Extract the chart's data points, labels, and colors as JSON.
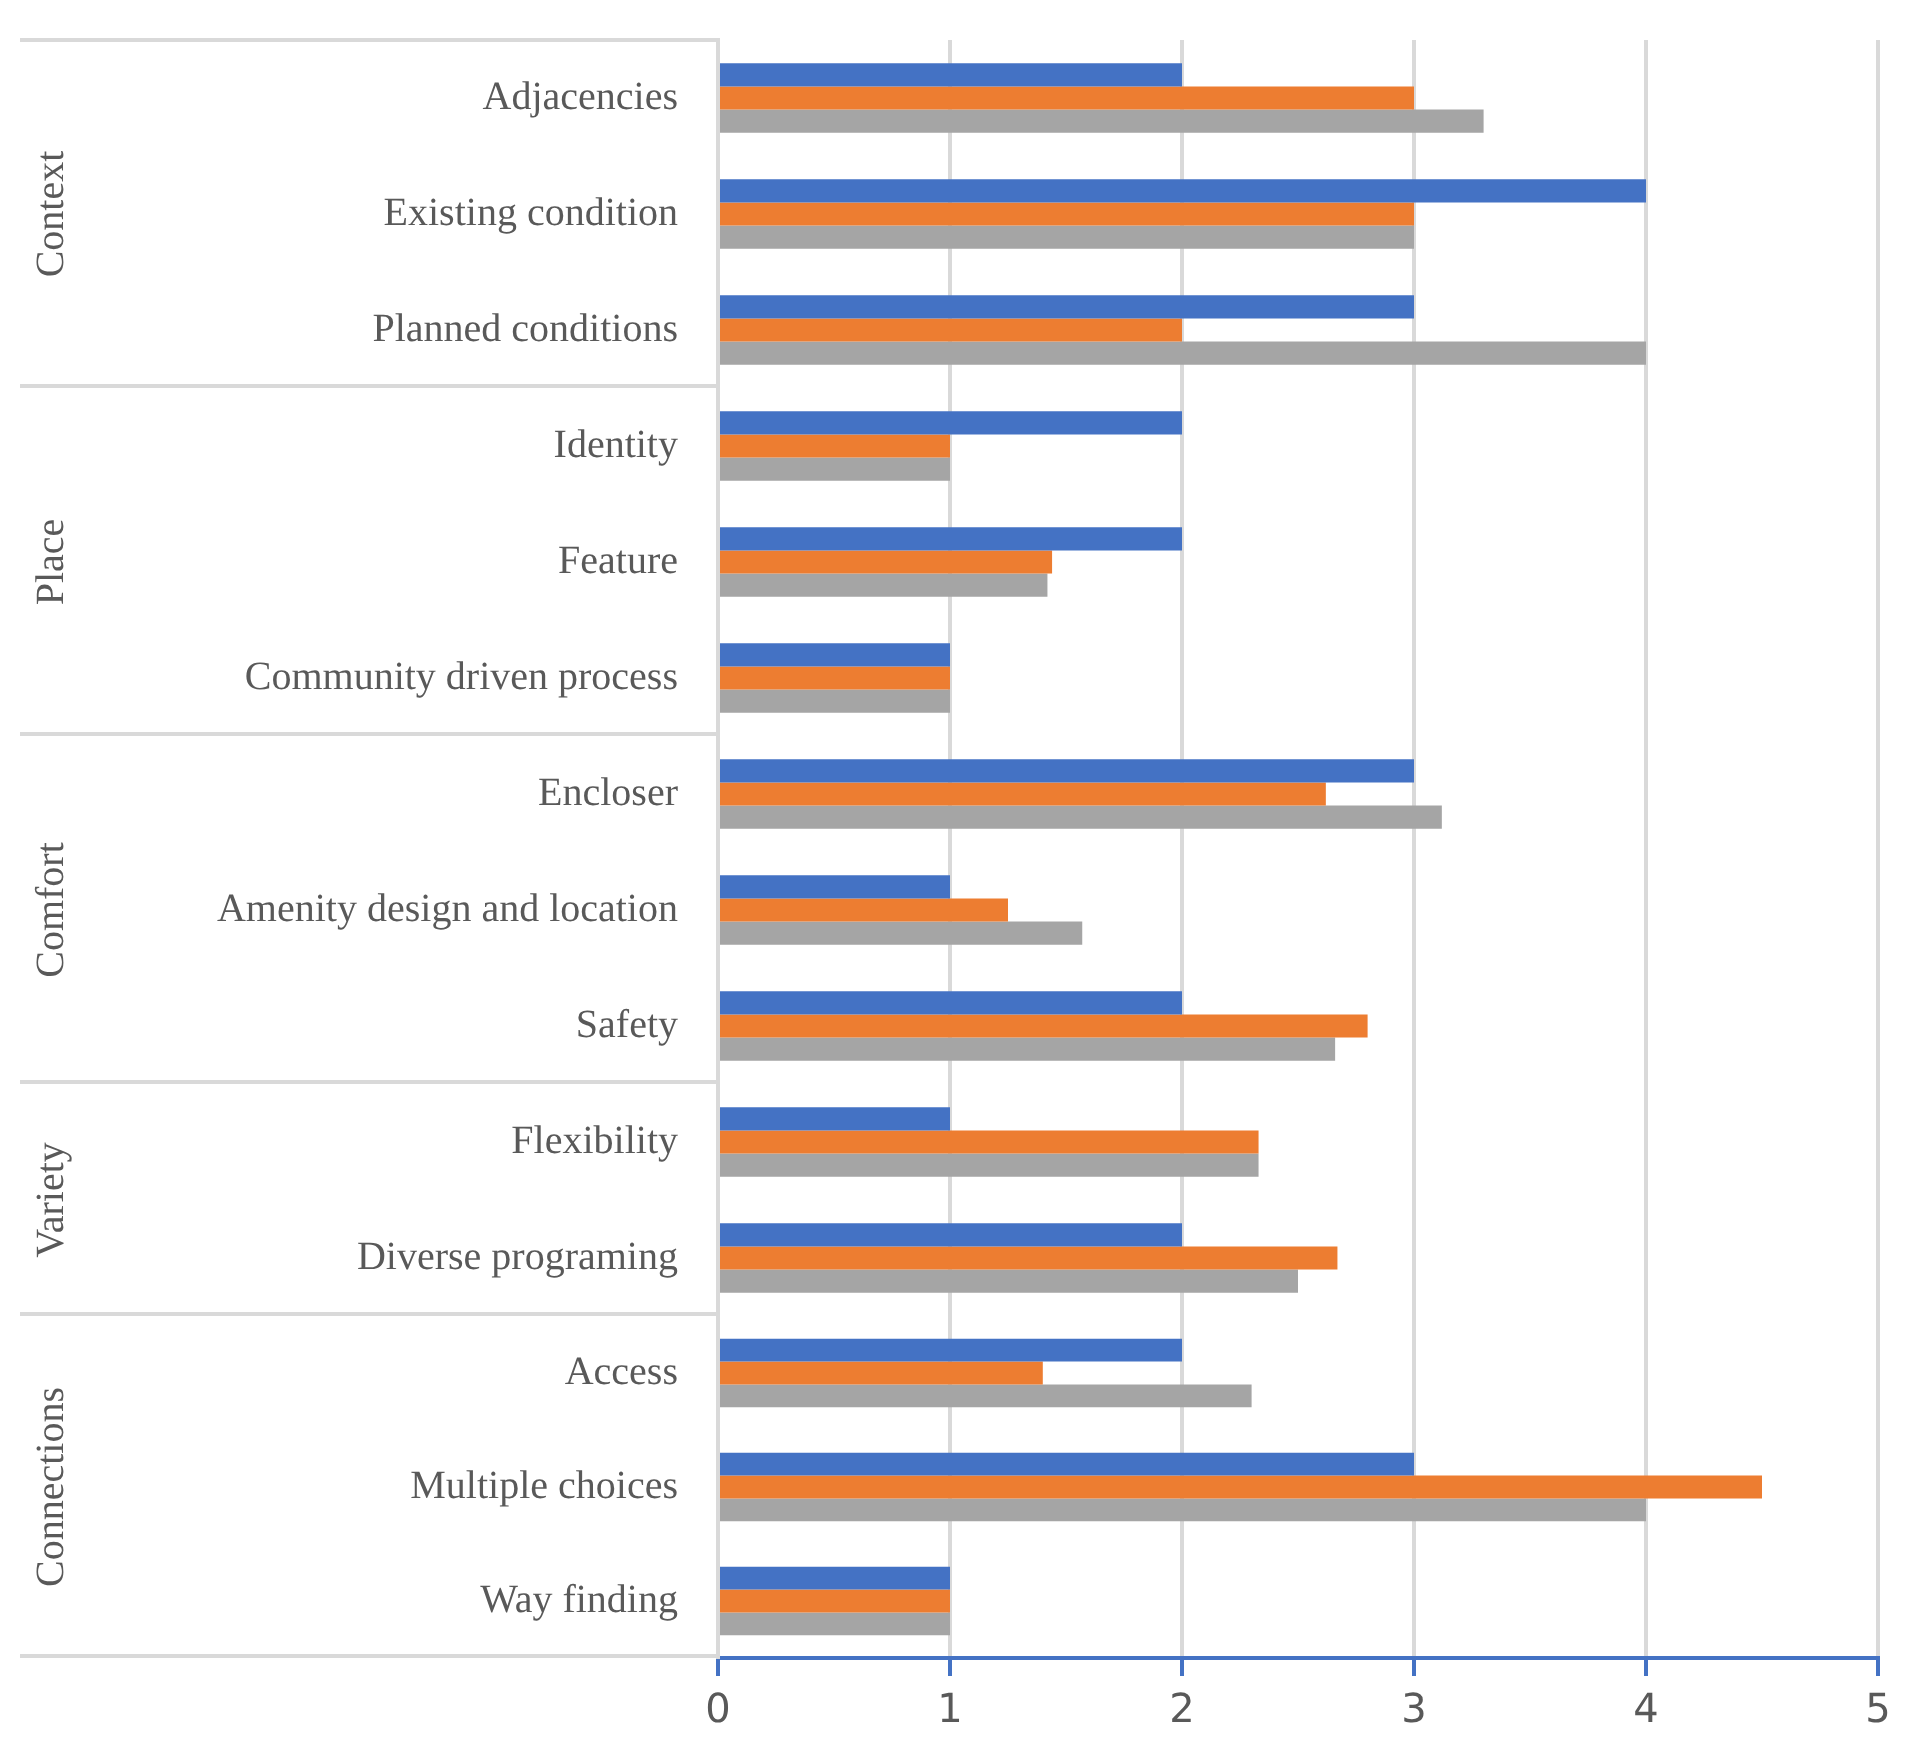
{
  "chart_data": [
    {
      "type": "bar",
      "orientation": "horizontal",
      "ylabel": "Context",
      "categories": [
        "Adjacencies",
        "Existing condition",
        "Planned conditions"
      ],
      "series": [
        {
          "color": "#4472c4",
          "values": [
            2,
            4,
            3
          ]
        },
        {
          "color": "#ed7d31",
          "values": [
            3,
            3,
            2
          ]
        },
        {
          "color": "#a5a5a5",
          "values": [
            3.3,
            3,
            4
          ]
        }
      ],
      "xlim": [
        0,
        5
      ],
      "xticks": [
        0,
        1,
        2,
        3,
        4,
        5
      ],
      "grid": "x",
      "tick_labels": "y"
    },
    {
      "type": "bar",
      "orientation": "horizontal",
      "ylabel": "Place",
      "categories": [
        "Identity",
        "Feature",
        "Community driven process"
      ],
      "series": [
        {
          "color": "#4472c4",
          "values": [
            2,
            2,
            1
          ]
        },
        {
          "color": "#ed7d31",
          "values": [
            1,
            1.44,
            1
          ]
        },
        {
          "color": "#a5a5a5",
          "values": [
            1,
            1.42,
            1
          ]
        }
      ],
      "xlim": [
        0,
        5
      ],
      "xticks": [
        0,
        1,
        2,
        3,
        4,
        5
      ],
      "grid": "x",
      "tick_labels": "y"
    },
    {
      "type": "bar",
      "orientation": "horizontal",
      "ylabel": "Comfort",
      "categories": [
        "Encloser",
        "Amenity design and location",
        "Safety"
      ],
      "series": [
        {
          "color": "#4472c4",
          "values": [
            3,
            1,
            2
          ]
        },
        {
          "color": "#ed7d31",
          "values": [
            2.62,
            1.25,
            2.8
          ]
        },
        {
          "color": "#a5a5a5",
          "values": [
            3.12,
            1.57,
            2.66
          ]
        }
      ],
      "xlim": [
        0,
        5
      ],
      "xticks": [
        0,
        1,
        2,
        3,
        4,
        5
      ],
      "grid": "x",
      "tick_labels": "y"
    },
    {
      "type": "bar",
      "orientation": "horizontal",
      "ylabel": "Variety",
      "categories": [
        "Flexibility",
        "Diverse programing"
      ],
      "series": [
        {
          "color": "#4472c4",
          "values": [
            1,
            2
          ]
        },
        {
          "color": "#ed7d31",
          "values": [
            2.33,
            2.67
          ]
        },
        {
          "color": "#a5a5a5",
          "values": [
            2.33,
            2.5
          ]
        }
      ],
      "xlim": [
        0,
        5
      ],
      "xticks": [
        0,
        1,
        2,
        3,
        4,
        5
      ],
      "grid": "x",
      "tick_labels": "y"
    },
    {
      "type": "bar",
      "orientation": "horizontal",
      "ylabel": "Connections",
      "categories": [
        "Access",
        "Multiple choices",
        "Way finding"
      ],
      "series": [
        {
          "color": "#4472c4",
          "values": [
            2,
            3,
            1
          ]
        },
        {
          "color": "#ed7d31",
          "values": [
            1.4,
            4.5,
            1
          ]
        },
        {
          "color": "#a5a5a5",
          "values": [
            2.3,
            4,
            1
          ]
        }
      ],
      "xlim": [
        0,
        5
      ],
      "xticks": [
        0,
        1,
        2,
        3,
        4,
        5
      ],
      "grid": "x"
    }
  ]
}
